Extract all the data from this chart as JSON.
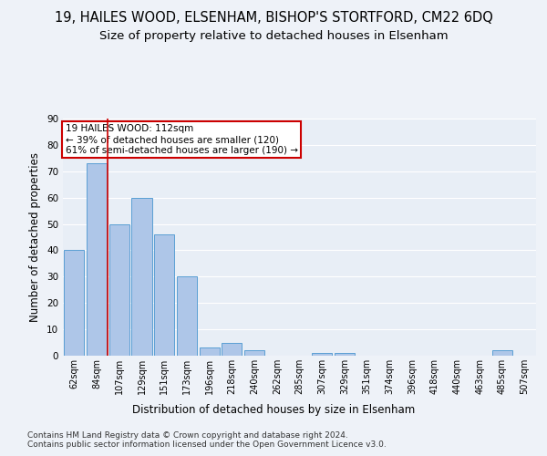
{
  "title": "19, HAILES WOOD, ELSENHAM, BISHOP'S STORTFORD, CM22 6DQ",
  "subtitle": "Size of property relative to detached houses in Elsenham",
  "xlabel": "Distribution of detached houses by size in Elsenham",
  "ylabel": "Number of detached properties",
  "categories": [
    "62sqm",
    "84sqm",
    "107sqm",
    "129sqm",
    "151sqm",
    "173sqm",
    "196sqm",
    "218sqm",
    "240sqm",
    "262sqm",
    "285sqm",
    "307sqm",
    "329sqm",
    "351sqm",
    "374sqm",
    "396sqm",
    "418sqm",
    "440sqm",
    "463sqm",
    "485sqm",
    "507sqm"
  ],
  "values": [
    40,
    73,
    50,
    60,
    46,
    30,
    3,
    5,
    2,
    0,
    0,
    1,
    1,
    0,
    0,
    0,
    0,
    0,
    0,
    2,
    0
  ],
  "bar_color": "#aec6e8",
  "bar_edge_color": "#5a9fd4",
  "vline_x": 1.5,
  "vline_color": "#cc0000",
  "annotation_text": "19 HAILES WOOD: 112sqm\n← 39% of detached houses are smaller (120)\n61% of semi-detached houses are larger (190) →",
  "annotation_box_color": "#ffffff",
  "annotation_box_edge_color": "#cc0000",
  "ylim": [
    0,
    90
  ],
  "yticks": [
    0,
    10,
    20,
    30,
    40,
    50,
    60,
    70,
    80,
    90
  ],
  "footer": "Contains HM Land Registry data © Crown copyright and database right 2024.\nContains public sector information licensed under the Open Government Licence v3.0.",
  "bg_color": "#eef2f8",
  "plot_bg_color": "#e8eef6",
  "grid_color": "#ffffff",
  "title_fontsize": 10.5,
  "subtitle_fontsize": 9.5,
  "ylabel_fontsize": 8.5,
  "tick_fontsize": 7.0,
  "footer_fontsize": 6.5,
  "xlabel_fontsize": 8.5,
  "ann_fontsize": 7.5
}
